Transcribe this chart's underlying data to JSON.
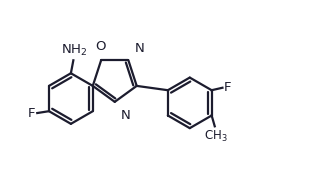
{
  "bg_color": "#ffffff",
  "line_color": "#1c1c2e",
  "line_width": 1.6,
  "font_size": 8.5,
  "fig_width": 3.33,
  "fig_height": 1.94,
  "dpi": 100,
  "xlim": [
    0.0,
    10.5
  ],
  "ylim": [
    0.3,
    6.5
  ]
}
